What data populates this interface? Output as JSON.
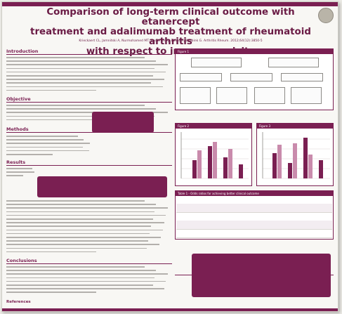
{
  "poster": {
    "title_line1": "Comparison of long-term clinical outcome with etanercept",
    "title_line2": "treatment and adalimumab treatment of rheumatoid arthritis",
    "title_line3": "with respect to immunogenicity",
    "authors": "Krieckaert CL, Jamnitski A, Nurmohamed MT, Kostense PJ, Boers M, Wolbink G. Arthritis Rheum. 2012;64(12):3850-5"
  },
  "sections": {
    "introduction": "Introduction",
    "objective": "Objective",
    "methods": "Methods",
    "results": "Results",
    "conclusions": "Conclusions",
    "references": "References"
  },
  "figures": {
    "figure1": "Figure 1",
    "figure2": "Figure 2",
    "figure3": "Figure 3",
    "table1": "Table 1 - Odds ratios for achieving better clinical outcome"
  },
  "colors": {
    "accent": "#7a1f52",
    "bar_dark": "#7a1f52",
    "bar_light": "#c98bac"
  }
}
